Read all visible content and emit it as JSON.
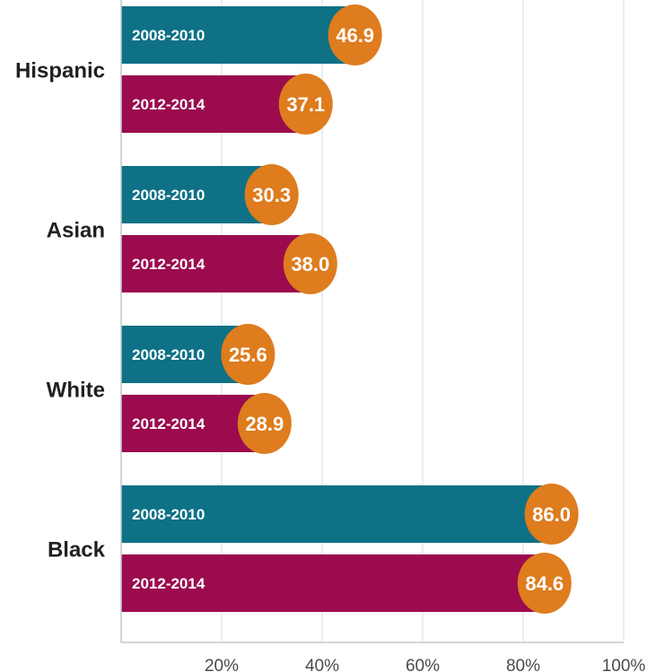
{
  "chart_data": {
    "type": "bar",
    "orientation": "horizontal",
    "categories": [
      "Hispanic",
      "Asian",
      "White",
      "Black"
    ],
    "series": [
      {
        "name": "2008-2010",
        "values": [
          46.9,
          30.3,
          25.6,
          86.0
        ],
        "color": "#0e7186"
      },
      {
        "name": "2012-2014",
        "values": [
          37.1,
          38.0,
          28.9,
          84.6
        ],
        "color": "#9b0b4e"
      }
    ],
    "value_labels": {
      "Hispanic": [
        "46.9",
        "37.1"
      ],
      "Asian": [
        "30.3",
        "38.0"
      ],
      "White": [
        "25.6",
        "28.9"
      ],
      "Black": [
        "86.0",
        "84.6"
      ]
    },
    "x_ticks": [
      "20%",
      "40%",
      "60%",
      "80%",
      "100%"
    ],
    "x_tick_values": [
      20,
      40,
      60,
      80,
      100
    ],
    "xlim": [
      0,
      100
    ],
    "grid": true,
    "marker_color": "#de7c1e",
    "title": "",
    "xlabel": "",
    "ylabel": ""
  }
}
